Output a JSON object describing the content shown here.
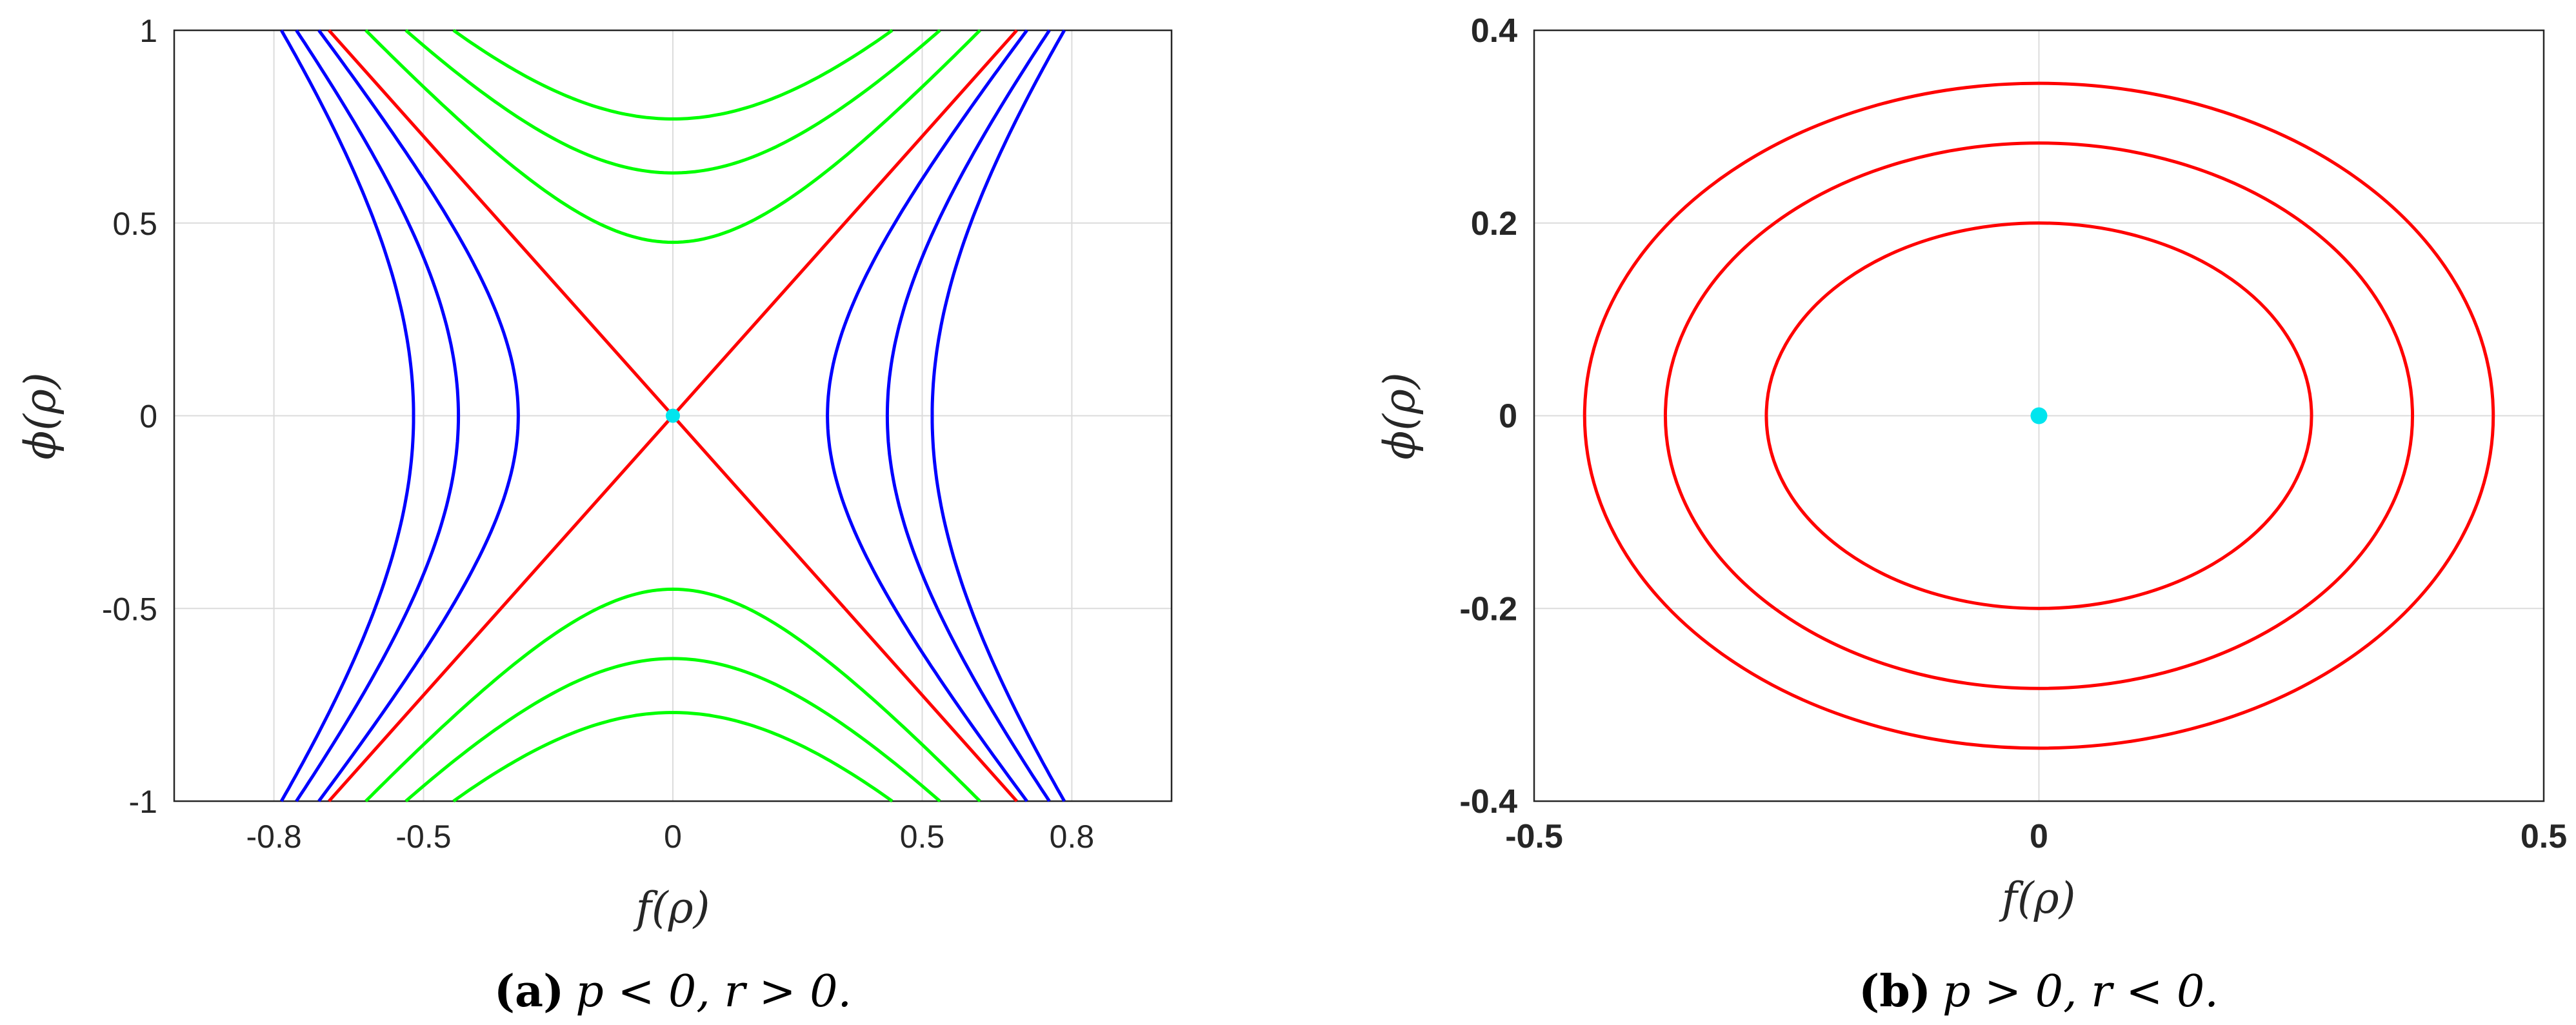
{
  "chart_data": [
    {
      "type": "line",
      "caption": {
        "label": "(a)",
        "text": "p < 0, r > 0."
      },
      "xlabel": "f(ρ)",
      "ylabel": "ϕ(ρ)",
      "xlim": [
        -1,
        1
      ],
      "ylim": [
        -1,
        1
      ],
      "xticks": [
        -0.8,
        -0.5,
        0,
        0.5,
        0.8
      ],
      "xticklabels": [
        "-0.8",
        "-0.5",
        "0",
        "0.5",
        "0.8"
      ],
      "yticks": [
        -1,
        -0.5,
        0,
        0.5,
        1
      ],
      "yticklabels": [
        "-1",
        "-0.5",
        "0",
        "0.5",
        "1"
      ],
      "grid": true,
      "colors": {
        "separatrix": "#ff0000",
        "vertical_branch": "#00ff00",
        "horizontal_branch": "#0000ff",
        "equilibrium": "#00e5ee"
      },
      "curves": {
        "separatrix_slopes": [
          1.45,
          -1.45
        ],
        "green_vertex_phi": [
          0.45,
          0.63,
          0.77
        ],
        "blue_vertex_f": [
          0.31,
          0.43,
          0.52
        ],
        "blue_x_at_phi_1": [
          0.71,
          0.755,
          0.785
        ]
      },
      "equilibrium_point": [
        0,
        0
      ]
    },
    {
      "type": "line",
      "caption": {
        "label": "(b)",
        "text": "p > 0, r < 0."
      },
      "xlabel": "f(ρ)",
      "ylabel": "ϕ(ρ)",
      "xlim": [
        -0.5,
        0.5
      ],
      "ylim": [
        -0.4,
        0.4
      ],
      "xticks": [
        -0.5,
        0,
        0.5
      ],
      "xticklabels": [
        "-0.5",
        "0",
        "0.5"
      ],
      "yticks": [
        -0.4,
        -0.2,
        0,
        0.2,
        0.4
      ],
      "yticklabels": [
        "-0.4",
        "-0.2",
        "0",
        "0.2",
        "0.4"
      ],
      "grid": true,
      "colors": {
        "orbit": "#ff0000",
        "equilibrium": "#00e5ee"
      },
      "ellipses": [
        {
          "a": 0.27,
          "b": 0.2
        },
        {
          "a": 0.37,
          "b": 0.283
        },
        {
          "a": 0.45,
          "b": 0.345
        }
      ],
      "equilibrium_point": [
        0,
        0
      ]
    }
  ]
}
